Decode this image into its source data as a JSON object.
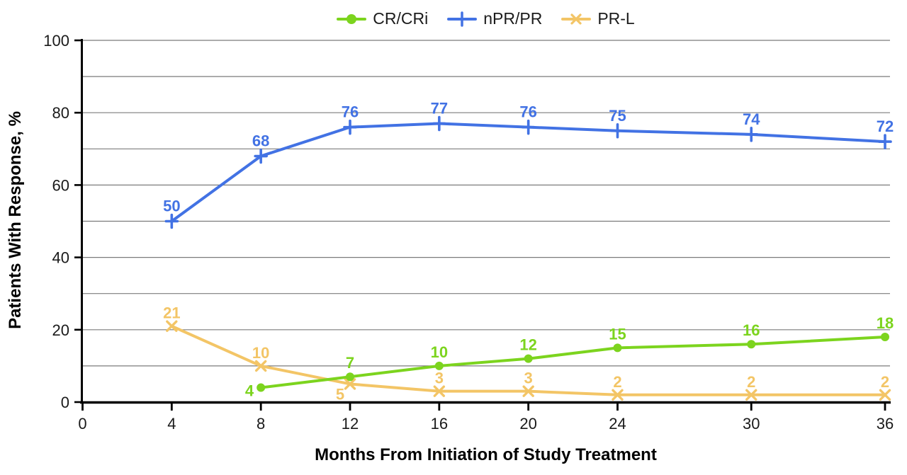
{
  "chart_data": {
    "type": "line",
    "title": "",
    "xlabel": "Months From Initiation of Study Treatment",
    "ylabel": "Patients With Response, %",
    "xlim": [
      0,
      36
    ],
    "ylim": [
      0,
      100
    ],
    "x_ticks": [
      0,
      4,
      8,
      12,
      16,
      20,
      24,
      30,
      36
    ],
    "y_ticks": [
      0,
      20,
      40,
      60,
      80,
      100
    ],
    "grid": true,
    "grid_interval": 10,
    "grid_color": "#7b7b7b",
    "axis_color": "#000000",
    "tick_label_color": "#1a1a1a",
    "legend_position": "top-center",
    "legend": [
      "CR/CRi",
      "nPR/PR",
      "PR-L"
    ],
    "series": [
      {
        "name": "CR/CRi",
        "color": "#7cd41e",
        "marker": "circle",
        "x": [
          8,
          12,
          16,
          20,
          24,
          30,
          36
        ],
        "y": [
          4,
          7,
          10,
          12,
          15,
          16,
          18
        ],
        "label_pos": [
          "left",
          "above",
          "above",
          "above",
          "above",
          "above",
          "above"
        ]
      },
      {
        "name": "nPR/PR",
        "color": "#4272e4",
        "marker": "plus",
        "x": [
          4,
          8,
          12,
          16,
          20,
          24,
          30,
          36
        ],
        "y": [
          50,
          68,
          76,
          77,
          76,
          75,
          74,
          72
        ],
        "label_pos": [
          "above",
          "above",
          "above",
          "above",
          "above",
          "above",
          "above",
          "above"
        ]
      },
      {
        "name": "PR-L",
        "color": "#f3c566",
        "marker": "x",
        "x": [
          4,
          8,
          12,
          16,
          20,
          24,
          30,
          36
        ],
        "y": [
          21,
          10,
          5,
          3,
          3,
          2,
          2,
          2
        ],
        "label_pos": [
          "above",
          "above",
          "below-left",
          "above",
          "above",
          "above",
          "above",
          "above"
        ]
      }
    ]
  }
}
